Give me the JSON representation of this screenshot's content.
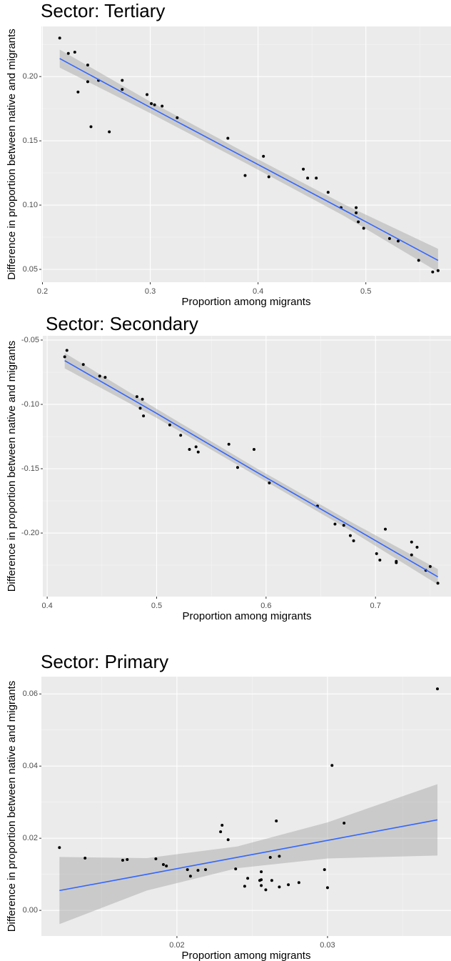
{
  "chart_data": [
    {
      "type": "scatter",
      "title": "Sector: Tertiary",
      "x_label": "Proportion among migrants",
      "y_label": "Difference in proportion between native and migrants",
      "x": [
        0.216,
        0.224,
        0.23,
        0.233,
        0.242,
        0.242,
        0.245,
        0.252,
        0.262,
        0.274,
        0.274,
        0.297,
        0.301,
        0.304,
        0.311,
        0.325,
        0.372,
        0.388,
        0.405,
        0.41,
        0.442,
        0.446,
        0.454,
        0.465,
        0.477,
        0.491,
        0.491,
        0.493,
        0.498,
        0.522,
        0.53,
        0.549,
        0.562,
        0.567
      ],
      "values": [
        0.23,
        0.218,
        0.219,
        0.188,
        0.209,
        0.196,
        0.161,
        0.197,
        0.157,
        0.197,
        0.19,
        0.186,
        0.179,
        0.178,
        0.177,
        0.168,
        0.152,
        0.123,
        0.138,
        0.122,
        0.128,
        0.121,
        0.121,
        0.11,
        0.098,
        0.098,
        0.094,
        0.087,
        0.082,
        0.074,
        0.072,
        0.057,
        0.048,
        0.049
      ],
      "fit": {
        "x": [
          0.216,
          0.3,
          0.39,
          0.48,
          0.567
        ],
        "y": [
          0.214,
          0.176,
          0.136,
          0.096,
          0.057
        ],
        "lower": [
          0.207,
          0.1715,
          0.132,
          0.0915,
          0.048
        ],
        "upper": [
          0.221,
          0.1805,
          0.14,
          0.1005,
          0.066
        ]
      },
      "color": "#000000",
      "fit_color": "#3366ff",
      "band_color": "#999999",
      "xlim": [
        0.199,
        0.579
      ],
      "ylim": [
        0.04,
        0.239
      ],
      "xticks": [
        0.2,
        0.3,
        0.4,
        0.5
      ],
      "yticks": [
        {
          "value": 0.05,
          "label": "0.05"
        },
        {
          "value": 0.1,
          "label": "0.10"
        },
        {
          "value": 0.15,
          "label": "0.15"
        },
        {
          "value": 0.2,
          "label": "0.20"
        }
      ],
      "grid": true
    },
    {
      "type": "scatter",
      "title": "Sector: Secondary",
      "x_label": "Proportion among migrants",
      "y_label": "Difference in proportion between native and migrants",
      "x": [
        0.416,
        0.418,
        0.433,
        0.448,
        0.453,
        0.482,
        0.485,
        0.487,
        0.488,
        0.512,
        0.522,
        0.53,
        0.536,
        0.538,
        0.566,
        0.574,
        0.589,
        0.603,
        0.647,
        0.663,
        0.671,
        0.677,
        0.68,
        0.701,
        0.704,
        0.709,
        0.719,
        0.719,
        0.733,
        0.733,
        0.738,
        0.746,
        0.75,
        0.757
      ],
      "values": [
        -0.063,
        -0.058,
        -0.069,
        -0.078,
        -0.079,
        -0.094,
        -0.103,
        -0.096,
        -0.109,
        -0.116,
        -0.124,
        -0.135,
        -0.133,
        -0.137,
        -0.131,
        -0.149,
        -0.135,
        -0.161,
        -0.179,
        -0.193,
        -0.194,
        -0.202,
        -0.206,
        -0.216,
        -0.221,
        -0.197,
        -0.222,
        -0.223,
        -0.207,
        -0.217,
        -0.211,
        -0.229,
        -0.226,
        -0.239
      ],
      "fit": {
        "x": [
          0.416,
          0.5,
          0.59,
          0.68,
          0.757
        ],
        "y": [
          -0.066,
          -0.107,
          -0.152,
          -0.196,
          -0.234
        ],
        "lower": [
          -0.072,
          -0.1105,
          -0.155,
          -0.1995,
          -0.24
        ],
        "upper": [
          -0.06,
          -0.1035,
          -0.149,
          -0.1925,
          -0.228
        ]
      },
      "color": "#000000",
      "fit_color": "#3366ff",
      "band_color": "#999999",
      "xlim": [
        0.396,
        0.769
      ],
      "ylim": [
        -0.2494,
        -0.0467
      ],
      "xticks": [
        0.4,
        0.5,
        0.6,
        0.7
      ],
      "yticks": [
        {
          "value": -0.2,
          "label": "-0.20"
        },
        {
          "value": -0.15,
          "label": "-0.15"
        },
        {
          "value": -0.1,
          "label": "-0.10"
        },
        {
          "value": -0.05,
          "label": "-0.05"
        }
      ],
      "grid": true
    },
    {
      "type": "scatter",
      "title": "Sector: Primary",
      "x_label": "Proportion among migrants",
      "y_label": "Difference in proportion between native and migrants",
      "x": [
        0.0122,
        0.0139,
        0.0164,
        0.0167,
        0.0186,
        0.0191,
        0.0193,
        0.0207,
        0.0209,
        0.0214,
        0.0219,
        0.0229,
        0.023,
        0.0234,
        0.0239,
        0.0245,
        0.0247,
        0.0255,
        0.0256,
        0.0256,
        0.0256,
        0.0259,
        0.0262,
        0.0263,
        0.0266,
        0.0268,
        0.0268,
        0.0274,
        0.0281,
        0.0298,
        0.03,
        0.0303,
        0.0311,
        0.0373
      ],
      "values": [
        0.0174,
        0.0145,
        0.0139,
        0.0141,
        0.0143,
        0.0127,
        0.0123,
        0.0113,
        0.0095,
        0.0111,
        0.0113,
        0.0218,
        0.0236,
        0.0196,
        0.0115,
        0.0067,
        0.0089,
        0.0083,
        0.0107,
        0.0085,
        0.0069,
        0.0057,
        0.0147,
        0.0083,
        0.0248,
        0.0065,
        0.015,
        0.0071,
        0.0077,
        0.0113,
        0.0063,
        0.0402,
        0.0242,
        0.0614
      ],
      "fit": {
        "x": [
          0.0122,
          0.018,
          0.024,
          0.03,
          0.0373
        ],
        "y": [
          0.0055,
          0.01,
          0.0147,
          0.0194,
          0.0251
        ],
        "lower": [
          -0.0038,
          0.0055,
          0.0117,
          0.0144,
          0.0152
        ],
        "upper": [
          0.0148,
          0.0145,
          0.0177,
          0.0244,
          0.035
        ]
      },
      "color": "#000000",
      "fit_color": "#3366ff",
      "band_color": "#999999",
      "xlim": [
        0.011,
        0.0382
      ],
      "ylim": [
        -0.0071,
        0.0648
      ],
      "xticks": [
        {
          "value": 0.02,
          "label": "0.02"
        },
        {
          "value": 0.03,
          "label": "0.03"
        }
      ],
      "yticks": [
        {
          "value": 0.0,
          "label": "0.00"
        },
        {
          "value": 0.02,
          "label": "0.02"
        },
        {
          "value": 0.04,
          "label": "0.04"
        },
        {
          "value": 0.06,
          "label": "0.06"
        }
      ],
      "grid": true
    }
  ]
}
